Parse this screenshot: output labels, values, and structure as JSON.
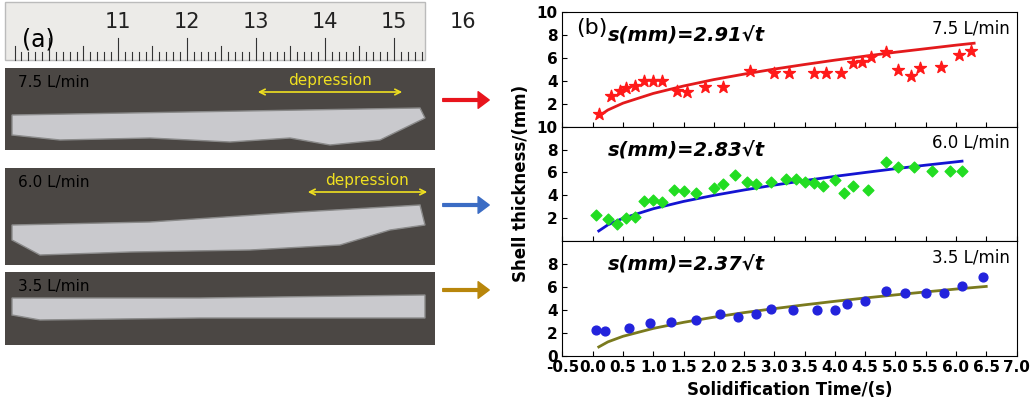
{
  "panel_a": {
    "label": "(a)",
    "ruler_ticks": [
      11,
      12,
      13,
      14,
      15,
      16
    ],
    "samples": [
      {
        "label": "7.5 L/min",
        "annotation": "depression"
      },
      {
        "label": "6.0 L/min",
        "annotation": "depression"
      },
      {
        "label": "3.5 L/min"
      }
    ]
  },
  "panel_b": {
    "label": "(b)",
    "xlabel": "Solidification Time/(s)",
    "ylabel": "Shell thickness/(mm)"
  },
  "chart_data": [
    {
      "type": "scatter",
      "annotations": [
        "s(mm)=2.91√t",
        "7.5 L/min"
      ],
      "xlim": [
        -0.5,
        7.0
      ],
      "xticks": [
        {
          "value": -0.5,
          "label": "-0.5"
        },
        {
          "value": 0,
          "label": "0.0"
        },
        {
          "value": 0.5,
          "label": "0.5"
        },
        {
          "value": 1,
          "label": "1.0"
        },
        {
          "value": 1.5,
          "label": "1.5"
        },
        {
          "value": 2,
          "label": "2.0"
        },
        {
          "value": 2.5,
          "label": "2.5"
        },
        {
          "value": 3,
          "label": "3.0"
        },
        {
          "value": 3.5,
          "label": "3.5"
        },
        {
          "value": 4,
          "label": "4.0"
        },
        {
          "value": 4.5,
          "label": "4.5"
        },
        {
          "value": 5,
          "label": "5.0"
        },
        {
          "value": 5.5,
          "label": "5.5"
        },
        {
          "value": 6,
          "label": "6.0"
        },
        {
          "value": 6.5,
          "label": "6.5"
        },
        {
          "value": 7,
          "label": "7.0"
        }
      ],
      "ylim": [
        0,
        10
      ],
      "yticks": [
        2,
        4,
        6,
        8,
        10
      ],
      "tick_labels": "y",
      "series": [
        {
          "type": "scatter",
          "color": "#ff1a1a",
          "marker": "star",
          "x": [
            0.1,
            0.3,
            0.45,
            0.55,
            0.7,
            0.85,
            1.0,
            1.15,
            1.4,
            1.55,
            1.85,
            2.15,
            2.6,
            3.0,
            3.25,
            3.65,
            3.85,
            4.1,
            4.3,
            4.45,
            4.6,
            4.85,
            5.05,
            5.25,
            5.4,
            5.75,
            6.05,
            6.25
          ],
          "values": [
            1.1,
            2.7,
            3.1,
            3.4,
            3.6,
            4.0,
            4.0,
            4.0,
            3.1,
            3.0,
            3.5,
            3.5,
            4.9,
            4.7,
            4.7,
            4.7,
            4.7,
            4.7,
            5.6,
            5.7,
            6.1,
            6.5,
            5.0,
            4.4,
            5.1,
            5.2,
            6.3,
            6.6
          ]
        },
        {
          "type": "line",
          "color": "#e31a1c",
          "line_style": "solid",
          "x": [
            0.1,
            0.25,
            0.5,
            1,
            1.5,
            2,
            2.5,
            3,
            3.5,
            4,
            4.5,
            5,
            5.5,
            6,
            6.3
          ],
          "values": [
            0.92,
            1.46,
            2.06,
            2.91,
            3.56,
            4.12,
            4.6,
            5.04,
            5.44,
            5.82,
            6.17,
            6.51,
            6.82,
            7.13,
            7.3
          ]
        }
      ]
    },
    {
      "type": "scatter",
      "annotations": [
        "s(mm)=2.83√t",
        "6.0 L/min"
      ],
      "xlim": [
        -0.5,
        7.0
      ],
      "xticks": [
        {
          "value": -0.5,
          "label": "-0.5"
        },
        {
          "value": 0,
          "label": "0.0"
        },
        {
          "value": 0.5,
          "label": "0.5"
        },
        {
          "value": 1,
          "label": "1.0"
        },
        {
          "value": 1.5,
          "label": "1.5"
        },
        {
          "value": 2,
          "label": "2.0"
        },
        {
          "value": 2.5,
          "label": "2.5"
        },
        {
          "value": 3,
          "label": "3.0"
        },
        {
          "value": 3.5,
          "label": "3.5"
        },
        {
          "value": 4,
          "label": "4.0"
        },
        {
          "value": 4.5,
          "label": "4.5"
        },
        {
          "value": 5,
          "label": "5.0"
        },
        {
          "value": 5.5,
          "label": "5.5"
        },
        {
          "value": 6,
          "label": "6.0"
        },
        {
          "value": 6.5,
          "label": "6.5"
        },
        {
          "value": 7,
          "label": "7.0"
        }
      ],
      "ylim": [
        0,
        10
      ],
      "yticks": [
        2,
        4,
        6,
        8,
        10
      ],
      "tick_labels": "y",
      "series": [
        {
          "type": "scatter",
          "color": "#22dd22",
          "marker": "diamond",
          "x": [
            0.05,
            0.25,
            0.4,
            0.55,
            0.7,
            0.85,
            1.0,
            1.15,
            1.35,
            1.5,
            1.7,
            2.0,
            2.15,
            2.35,
            2.55,
            2.7,
            2.95,
            3.2,
            3.35,
            3.5,
            3.65,
            3.8,
            4.0,
            4.15,
            4.3,
            4.55,
            4.85,
            5.05,
            5.3,
            5.6,
            5.9,
            6.1
          ],
          "values": [
            2.3,
            1.9,
            1.5,
            2.0,
            2.1,
            3.5,
            3.6,
            3.4,
            4.5,
            4.4,
            4.2,
            4.6,
            5.0,
            5.8,
            5.2,
            5.0,
            5.2,
            5.4,
            5.4,
            5.2,
            5.1,
            4.8,
            5.3,
            4.2,
            4.8,
            4.5,
            6.9,
            6.5,
            6.5,
            6.1,
            6.1,
            6.1
          ]
        },
        {
          "type": "line",
          "color": "#1414d2",
          "line_style": "solid",
          "x": [
            0.1,
            0.25,
            0.5,
            1,
            1.5,
            2,
            2.5,
            3,
            3.5,
            4,
            4.5,
            5,
            5.5,
            6,
            6.1
          ],
          "values": [
            0.89,
            1.42,
            2.0,
            2.83,
            3.47,
            4.0,
            4.47,
            4.9,
            5.29,
            5.66,
            6.0,
            6.33,
            6.64,
            6.93,
            6.99
          ]
        }
      ]
    },
    {
      "type": "scatter",
      "annotations": [
        "s(mm)=2.37√t",
        "3.5 L/min"
      ],
      "xlim": [
        -0.5,
        7.0
      ],
      "xticks": [
        {
          "value": -0.5,
          "label": "-0.5"
        },
        {
          "value": 0,
          "label": "0.0"
        },
        {
          "value": 0.5,
          "label": "0.5"
        },
        {
          "value": 1,
          "label": "1.0"
        },
        {
          "value": 1.5,
          "label": "1.5"
        },
        {
          "value": 2,
          "label": "2.0"
        },
        {
          "value": 2.5,
          "label": "2.5"
        },
        {
          "value": 3,
          "label": "3.0"
        },
        {
          "value": 3.5,
          "label": "3.5"
        },
        {
          "value": 4,
          "label": "4.0"
        },
        {
          "value": 4.5,
          "label": "4.5"
        },
        {
          "value": 5,
          "label": "5.0"
        },
        {
          "value": 5.5,
          "label": "5.5"
        },
        {
          "value": 6,
          "label": "6.0"
        },
        {
          "value": 6.5,
          "label": "6.5"
        },
        {
          "value": 7,
          "label": "7.0"
        }
      ],
      "ylim": [
        0,
        10
      ],
      "yticks": [
        0,
        2,
        4,
        6,
        8
      ],
      "tick_labels": true,
      "series": [
        {
          "type": "scatter",
          "color": "#2323dc",
          "marker": "circle",
          "x": [
            0.05,
            0.2,
            0.6,
            0.95,
            1.3,
            1.7,
            2.1,
            2.4,
            2.7,
            2.95,
            3.3,
            3.7,
            4.0,
            4.2,
            4.5,
            4.85,
            5.15,
            5.5,
            5.8,
            6.1,
            6.45
          ],
          "values": [
            2.2,
            2.1,
            2.4,
            2.8,
            2.9,
            3.1,
            3.6,
            3.4,
            3.6,
            4.1,
            4.0,
            4.0,
            4.0,
            4.5,
            4.8,
            5.6,
            5.5,
            5.5,
            5.5,
            6.1,
            6.9
          ]
        },
        {
          "type": "line",
          "color": "#7a7a1e",
          "line_style": "solid",
          "x": [
            0.1,
            0.25,
            0.5,
            1,
            1.5,
            2,
            2.5,
            3,
            3.5,
            4,
            4.5,
            5,
            5.5,
            6,
            6.5
          ],
          "values": [
            0.75,
            1.19,
            1.68,
            2.37,
            2.9,
            3.35,
            3.75,
            4.1,
            4.43,
            4.74,
            5.03,
            5.3,
            5.56,
            5.81,
            6.04
          ]
        }
      ]
    }
  ]
}
